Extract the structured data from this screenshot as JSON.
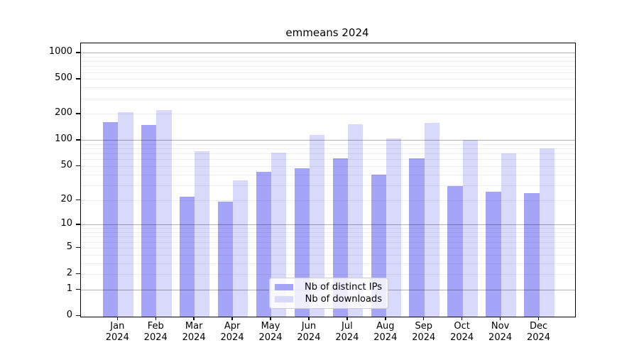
{
  "chart_data": {
    "type": "bar",
    "title": "emmeans 2024",
    "categories": [
      "Jan 2024",
      "Feb 2024",
      "Mar 2024",
      "Apr 2024",
      "May 2024",
      "Jun 2024",
      "Jul 2024",
      "Aug 2024",
      "Sep 2024",
      "Oct 2024",
      "Nov 2024",
      "Dec 2024"
    ],
    "x_tick_month": [
      "Jan",
      "Feb",
      "Mar",
      "Apr",
      "May",
      "Jun",
      "Jul",
      "Aug",
      "Sep",
      "Oct",
      "Nov",
      "Dec"
    ],
    "x_tick_year": "2024",
    "series": [
      {
        "name": "Nb of distinct IPs",
        "color": "#a4a4f8",
        "values": [
          162,
          148,
          22,
          19,
          43,
          47,
          61,
          40,
          62,
          29,
          25,
          24
        ]
      },
      {
        "name": "Nb of downloads",
        "color": "#d9d9fb",
        "values": [
          207,
          222,
          74,
          34,
          72,
          115,
          152,
          104,
          158,
          100,
          70,
          80
        ]
      }
    ],
    "y_scale": "log10(value+1)",
    "y_ticks": [
      0,
      1,
      2,
      5,
      10,
      20,
      50,
      100,
      200,
      500,
      1000
    ],
    "y_major_gridlines": [
      1,
      10,
      100,
      1000
    ],
    "y_minor_gridlines": [
      2,
      3,
      4,
      5,
      6,
      7,
      8,
      9,
      20,
      30,
      40,
      50,
      60,
      70,
      80,
      90,
      200,
      300,
      400,
      500,
      600,
      700,
      800,
      900
    ],
    "ylim": [
      0,
      1300
    ],
    "grid": true,
    "legend_position": "lower center"
  }
}
